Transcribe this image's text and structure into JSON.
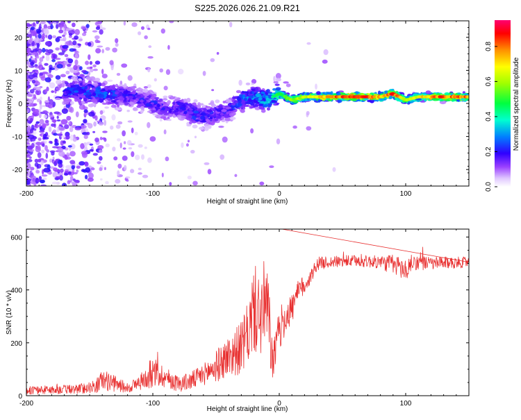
{
  "title": "S225.2026.026.21.09.R21",
  "chart_data": [
    {
      "type": "heatmap",
      "xlabel": "Height of straight line (km)",
      "ylabel": "Frequency (Hz)",
      "xlim": [
        -200,
        150
      ],
      "ylim": [
        -25,
        25
      ],
      "xticks": [
        -200,
        -100,
        0,
        100
      ],
      "xtick_labels": [
        "-200",
        "-100",
        "0",
        "100"
      ],
      "yticks": [
        -20,
        -10,
        0,
        10,
        20
      ],
      "ytick_labels": [
        "-20",
        "-10",
        "0",
        "10",
        "20"
      ],
      "colorbar": {
        "label": "Normalized spectral amplitude",
        "range": [
          0,
          0.95
        ],
        "ticks": [
          0.0,
          0.2,
          0.4,
          0.6,
          0.8
        ],
        "tick_labels": [
          "0.0",
          "0.2",
          "0.4",
          "0.6",
          "0.8"
        ],
        "colors": [
          "#ffffff",
          "#c8a0ff",
          "#8000ff",
          "#0000ff",
          "#00c0ff",
          "#00ff80",
          "#80ff00",
          "#ffff00",
          "#ff8000",
          "#ff0000",
          "#ff0080"
        ]
      },
      "ridge": {
        "x": [
          -165,
          -140,
          -115,
          -100,
          -90,
          -80,
          -70,
          -60,
          -50,
          -40,
          -30,
          -20,
          -10,
          0,
          10,
          20,
          40,
          60,
          80,
          90,
          100,
          110,
          130,
          150
        ],
        "freq": [
          4,
          3,
          2,
          0,
          -2,
          -1,
          -3,
          -4,
          -3,
          -2,
          1,
          2,
          1,
          3,
          1,
          2,
          2,
          2,
          2,
          3,
          1,
          2,
          2,
          2
        ],
        "amplitude": [
          0.25,
          0.28,
          0.2,
          0.22,
          0.2,
          0.22,
          0.25,
          0.22,
          0.2,
          0.2,
          0.3,
          0.3,
          0.4,
          0.5,
          0.6,
          0.65,
          0.8,
          0.9,
          0.75,
          0.9,
          0.6,
          0.7,
          0.85,
          0.8
        ]
      }
    },
    {
      "type": "line",
      "xlabel": "Height of straight line (km)",
      "ylabel": "SNR (10 * v/v)",
      "xlim": [
        -200,
        150
      ],
      "ylim": [
        0,
        630
      ],
      "xticks": [
        -200,
        -100,
        0,
        100
      ],
      "xtick_labels": [
        "-200",
        "-100",
        "0",
        "100"
      ],
      "yticks": [
        0,
        200,
        400,
        600
      ],
      "ytick_labels": [
        "0",
        "200",
        "400",
        "600"
      ],
      "color": "#e83030",
      "series": [
        {
          "name": "SNR",
          "x": [
            -200,
            -160,
            -145,
            -140,
            -120,
            -110,
            -100,
            -90,
            -80,
            -70,
            -60,
            -50,
            -40,
            -30,
            -25,
            -20,
            -15,
            -10,
            -5,
            0,
            5,
            10,
            15,
            20,
            25,
            30,
            40,
            60,
            80,
            90,
            95,
            100,
            105,
            120,
            150
          ],
          "y": [
            20,
            25,
            35,
            60,
            30,
            50,
            90,
            70,
            45,
            55,
            80,
            110,
            150,
            180,
            230,
            330,
            300,
            350,
            120,
            250,
            300,
            330,
            390,
            420,
            450,
            500,
            505,
            510,
            505,
            495,
            490,
            470,
            505,
            500,
            505
          ],
          "spread": [
            15,
            18,
            25,
            40,
            20,
            30,
            60,
            40,
            30,
            35,
            40,
            60,
            80,
            100,
            120,
            170,
            160,
            200,
            70,
            80,
            70,
            60,
            45,
            40,
            30,
            25,
            22,
            22,
            25,
            40,
            40,
            45,
            30,
            25,
            20
          ]
        }
      ]
    }
  ]
}
